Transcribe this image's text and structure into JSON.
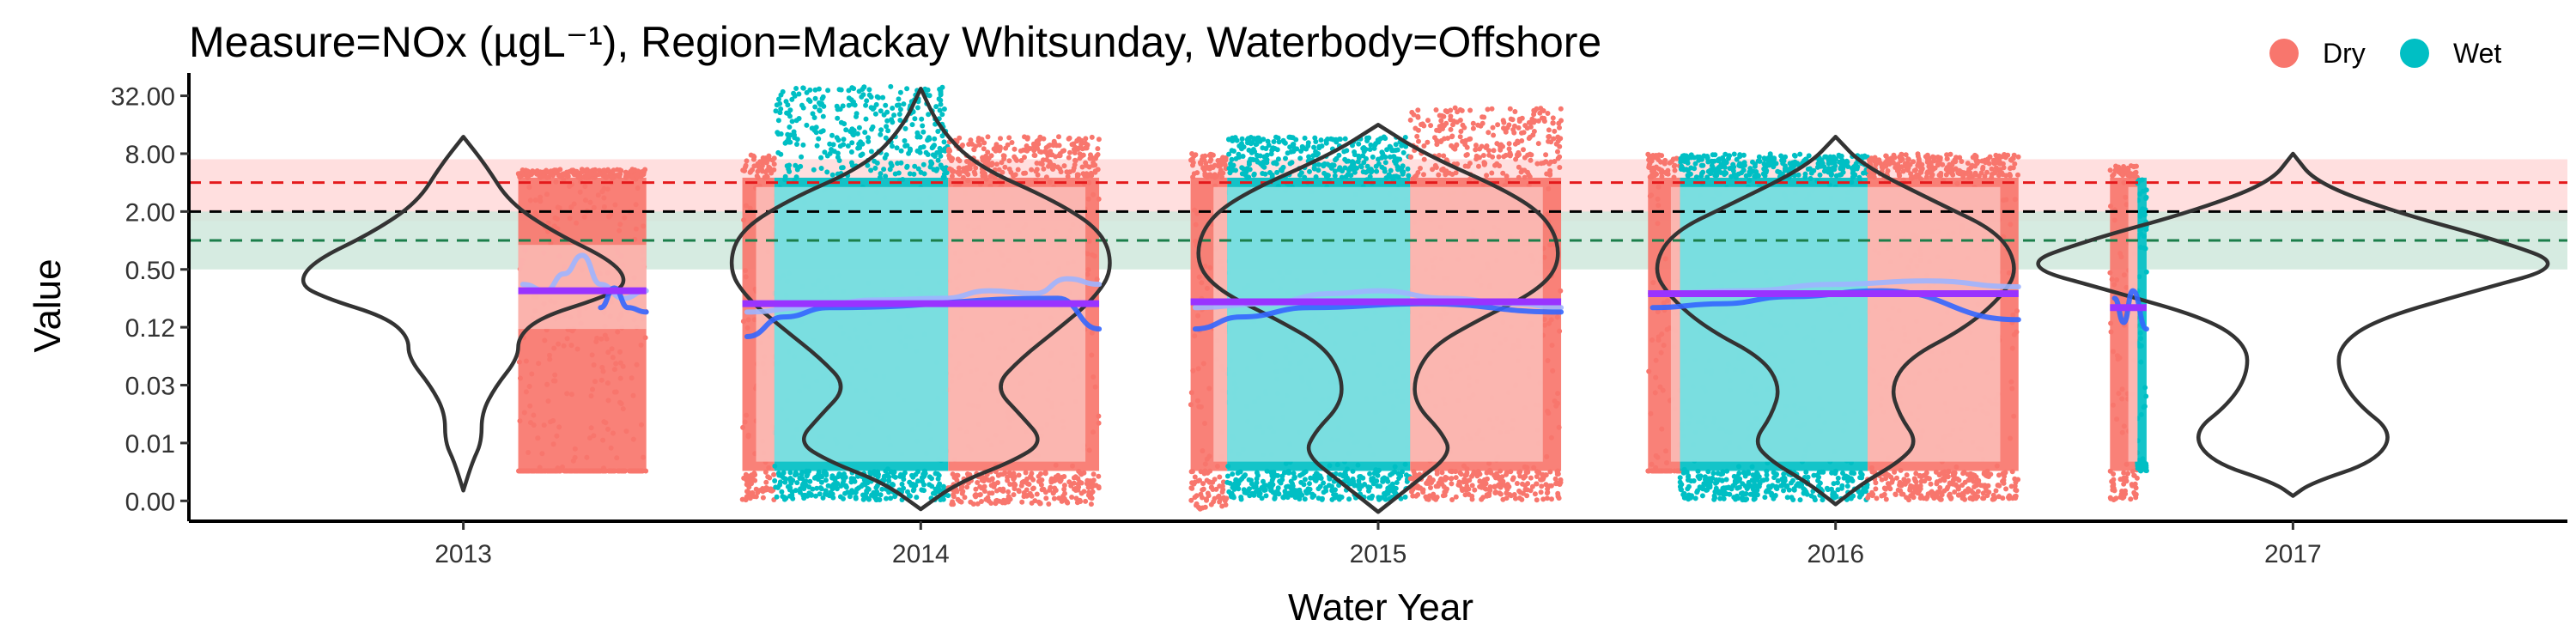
{
  "chart_data": {
    "type": "scatter",
    "title": "Measure=NOx (µgL⁻¹), Region=Mackay Whitsunday, Waterbody=Offshore",
    "xlabel": "Water Year",
    "ylabel": "Value",
    "x_ticks": [
      "2013",
      "2014",
      "2015",
      "2016",
      "2017"
    ],
    "y_scale": "log2",
    "y_ticks": [
      {
        "label": "32.00",
        "value": 32
      },
      {
        "label": "8.00",
        "value": 8
      },
      {
        "label": "2.00",
        "value": 2
      },
      {
        "label": "0.50",
        "value": 0.5
      },
      {
        "label": "0.12",
        "value": 0.125
      },
      {
        "label": "0.03",
        "value": 0.03125
      },
      {
        "label": "0.01",
        "value": 0.0078125
      },
      {
        "label": "0.00",
        "value": 0.001953125
      }
    ],
    "ylim": [
      0.0012,
      45
    ],
    "legend": {
      "position": "top-right",
      "items": [
        {
          "label": "Dry",
          "color": "#F8766D"
        },
        {
          "label": "Wet",
          "color": "#00BFC4"
        }
      ]
    },
    "colors": {
      "dry": "#F8766D",
      "wet": "#00BFC4",
      "dry_band": "#FBB8B3",
      "wet_band": "#80DFE2",
      "violin": "#333333",
      "smooth_light": "#9DB4FF",
      "smooth_dark": "#3366FF",
      "median_line": "#9933FF"
    },
    "reference_lines": [
      {
        "value": 4.0,
        "color": "#E41A1C",
        "style": "dashed",
        "band": [
          1.6,
          7.0
        ],
        "band_color": "#FFD9D9"
      },
      {
        "value": 2.0,
        "color": "#000000",
        "style": "dashed"
      },
      {
        "value": 1.0,
        "color": "#1B7E4A",
        "style": "dashed",
        "band": [
          0.5,
          2.0
        ],
        "band_color": "#CFE8DC"
      }
    ],
    "seasons": [
      {
        "year": 2013,
        "season": "Dry",
        "x_start": 2013.12,
        "x_end": 2013.4,
        "y_range": [
          0.004,
          5.5
        ]
      },
      {
        "year": 2014,
        "season": "Dry",
        "x_start": 2013.61,
        "x_end": 2013.68,
        "y_range": [
          0.002,
          8
        ]
      },
      {
        "year": 2014,
        "season": "Wet",
        "x_start": 2013.68,
        "x_end": 2014.06,
        "y_range": [
          0.002,
          40
        ]
      },
      {
        "year": 2014,
        "season": "Dry",
        "x_start": 2014.06,
        "x_end": 2014.39,
        "y_range": [
          0.0018,
          12
        ]
      },
      {
        "year": 2015,
        "season": "Dry",
        "x_start": 2014.59,
        "x_end": 2014.67,
        "y_range": [
          0.0016,
          8
        ]
      },
      {
        "year": 2015,
        "season": "Wet",
        "x_start": 2014.67,
        "x_end": 2015.07,
        "y_range": [
          0.002,
          12
        ]
      },
      {
        "year": 2015,
        "season": "Dry",
        "x_start": 2015.07,
        "x_end": 2015.4,
        "y_range": [
          0.002,
          24
        ]
      },
      {
        "year": 2016,
        "season": "Dry",
        "x_start": 2015.59,
        "x_end": 2015.66,
        "y_range": [
          0.004,
          8
        ]
      },
      {
        "year": 2016,
        "season": "Wet",
        "x_start": 2015.66,
        "x_end": 2016.07,
        "y_range": [
          0.002,
          8
        ]
      },
      {
        "year": 2016,
        "season": "Dry",
        "x_start": 2016.07,
        "x_end": 2016.4,
        "y_range": [
          0.002,
          8
        ]
      },
      {
        "year": 2017,
        "season": "Dry",
        "x_start": 2016.6,
        "x_end": 2016.66,
        "y_range": [
          0.002,
          6
        ]
      },
      {
        "year": 2017,
        "season": "Wet",
        "x_start": 2016.66,
        "x_end": 2016.68,
        "y_range": [
          0.005,
          1.2
        ]
      }
    ],
    "medians": [
      {
        "year": 2013,
        "x_start": 2013.12,
        "x_end": 2013.4,
        "value": 0.3
      },
      {
        "year": 2014,
        "x_start": 2013.61,
        "x_end": 2014.39,
        "value": 0.22
      },
      {
        "year": 2015,
        "x_start": 2014.59,
        "x_end": 2015.4,
        "value": 0.23
      },
      {
        "year": 2016,
        "x_start": 2015.59,
        "x_end": 2016.4,
        "value": 0.28
      },
      {
        "year": 2017,
        "x_start": 2016.6,
        "x_end": 2016.68,
        "value": 0.2
      }
    ],
    "violins": [
      {
        "year": 2013,
        "center": 2013.0,
        "y_range": [
          0.0025,
          12
        ],
        "profile": [
          [
            12,
            0.0
          ],
          [
            6,
            0.05
          ],
          [
            2.5,
            0.1
          ],
          [
            1.2,
            0.2
          ],
          [
            0.6,
            0.33
          ],
          [
            0.35,
            0.36
          ],
          [
            0.25,
            0.3
          ],
          [
            0.16,
            0.17
          ],
          [
            0.1,
            0.12
          ],
          [
            0.06,
            0.12
          ],
          [
            0.03,
            0.07
          ],
          [
            0.016,
            0.04
          ],
          [
            0.008,
            0.04
          ],
          [
            0.005,
            0.02
          ],
          [
            0.0025,
            0.0
          ]
        ]
      },
      {
        "year": 2014,
        "center": 2014.0,
        "y_range": [
          0.0016,
          38
        ],
        "profile": [
          [
            38,
            0.0
          ],
          [
            15,
            0.04
          ],
          [
            6,
            0.12
          ],
          [
            2.5,
            0.3
          ],
          [
            1.2,
            0.4
          ],
          [
            0.5,
            0.42
          ],
          [
            0.25,
            0.38
          ],
          [
            0.12,
            0.3
          ],
          [
            0.06,
            0.22
          ],
          [
            0.03,
            0.16
          ],
          [
            0.015,
            0.22
          ],
          [
            0.008,
            0.27
          ],
          [
            0.005,
            0.2
          ],
          [
            0.003,
            0.08
          ],
          [
            0.0016,
            0.0
          ]
        ]
      },
      {
        "year": 2015,
        "center": 2015.0,
        "y_range": [
          0.0015,
          16
        ],
        "profile": [
          [
            16,
            0.0
          ],
          [
            8,
            0.1
          ],
          [
            3,
            0.3
          ],
          [
            1.5,
            0.38
          ],
          [
            0.6,
            0.4
          ],
          [
            0.3,
            0.35
          ],
          [
            0.15,
            0.22
          ],
          [
            0.08,
            0.12
          ],
          [
            0.04,
            0.08
          ],
          [
            0.02,
            0.08
          ],
          [
            0.01,
            0.14
          ],
          [
            0.006,
            0.16
          ],
          [
            0.003,
            0.08
          ],
          [
            0.0015,
            0.0
          ]
        ]
      },
      {
        "year": 2016,
        "center": 2016.0,
        "y_range": [
          0.0018,
          12
        ],
        "profile": [
          [
            12,
            0.0
          ],
          [
            6,
            0.06
          ],
          [
            2.5,
            0.22
          ],
          [
            1.2,
            0.36
          ],
          [
            0.5,
            0.4
          ],
          [
            0.25,
            0.36
          ],
          [
            0.12,
            0.28
          ],
          [
            0.06,
            0.16
          ],
          [
            0.03,
            0.12
          ],
          [
            0.015,
            0.14
          ],
          [
            0.008,
            0.18
          ],
          [
            0.005,
            0.14
          ],
          [
            0.003,
            0.06
          ],
          [
            0.0018,
            0.0
          ]
        ]
      },
      {
        "year": 2017,
        "center": 2017.0,
        "y_range": [
          0.0022,
          8
        ],
        "profile": [
          [
            8,
            0.0
          ],
          [
            4,
            0.05
          ],
          [
            2,
            0.22
          ],
          [
            1,
            0.45
          ],
          [
            0.55,
            0.6
          ],
          [
            0.3,
            0.4
          ],
          [
            0.15,
            0.18
          ],
          [
            0.08,
            0.1
          ],
          [
            0.04,
            0.1
          ],
          [
            0.02,
            0.14
          ],
          [
            0.01,
            0.22
          ],
          [
            0.005,
            0.18
          ],
          [
            0.003,
            0.04
          ],
          [
            0.0022,
            0.0
          ]
        ]
      }
    ],
    "smooth_lines": [
      {
        "year": 2013,
        "color": "#9DB4FF",
        "points": [
          [
            2013.13,
            0.35
          ],
          [
            2013.18,
            0.3
          ],
          [
            2013.22,
            0.45
          ],
          [
            2013.26,
            0.7
          ],
          [
            2013.3,
            0.35
          ],
          [
            2013.35,
            0.25
          ],
          [
            2013.4,
            0.3
          ]
        ]
      },
      {
        "year": 2013,
        "color": "#3366FF",
        "points": [
          [
            2013.3,
            0.2
          ],
          [
            2013.33,
            0.32
          ],
          [
            2013.36,
            0.2
          ],
          [
            2013.4,
            0.18
          ]
        ]
      },
      {
        "year": 2014,
        "color": "#9DB4FF",
        "points": [
          [
            2013.62,
            0.18
          ],
          [
            2013.75,
            0.2
          ],
          [
            2013.9,
            0.24
          ],
          [
            2014.05,
            0.25
          ],
          [
            2014.15,
            0.3
          ],
          [
            2014.25,
            0.28
          ],
          [
            2014.32,
            0.4
          ],
          [
            2014.39,
            0.35
          ]
        ]
      },
      {
        "year": 2014,
        "color": "#3366FF",
        "points": [
          [
            2013.62,
            0.1
          ],
          [
            2013.7,
            0.16
          ],
          [
            2013.8,
            0.2
          ],
          [
            2014.3,
            0.25
          ],
          [
            2014.39,
            0.12
          ]
        ]
      },
      {
        "year": 2015,
        "color": "#9DB4FF",
        "points": [
          [
            2014.6,
            0.2
          ],
          [
            2014.75,
            0.22
          ],
          [
            2014.9,
            0.28
          ],
          [
            2015.0,
            0.3
          ],
          [
            2015.15,
            0.25
          ],
          [
            2015.3,
            0.22
          ],
          [
            2015.4,
            0.2
          ]
        ]
      },
      {
        "year": 2015,
        "color": "#3366FF",
        "points": [
          [
            2014.6,
            0.12
          ],
          [
            2014.7,
            0.16
          ],
          [
            2014.85,
            0.2
          ],
          [
            2015.1,
            0.22
          ],
          [
            2015.4,
            0.18
          ]
        ]
      },
      {
        "year": 2016,
        "color": "#9DB4FF",
        "points": [
          [
            2015.6,
            0.28
          ],
          [
            2015.8,
            0.3
          ],
          [
            2016.0,
            0.35
          ],
          [
            2016.2,
            0.38
          ],
          [
            2016.4,
            0.33
          ]
        ]
      },
      {
        "year": 2016,
        "color": "#3366FF",
        "points": [
          [
            2015.6,
            0.2
          ],
          [
            2015.75,
            0.22
          ],
          [
            2015.9,
            0.26
          ],
          [
            2016.1,
            0.3
          ],
          [
            2016.4,
            0.15
          ]
        ]
      },
      {
        "year": 2017,
        "color": "#3366FF",
        "points": [
          [
            2016.61,
            0.25
          ],
          [
            2016.63,
            0.14
          ],
          [
            2016.65,
            0.3
          ],
          [
            2016.68,
            0.12
          ]
        ]
      }
    ],
    "x_range": [
      2012.4,
      2017.6
    ],
    "grid": false
  }
}
